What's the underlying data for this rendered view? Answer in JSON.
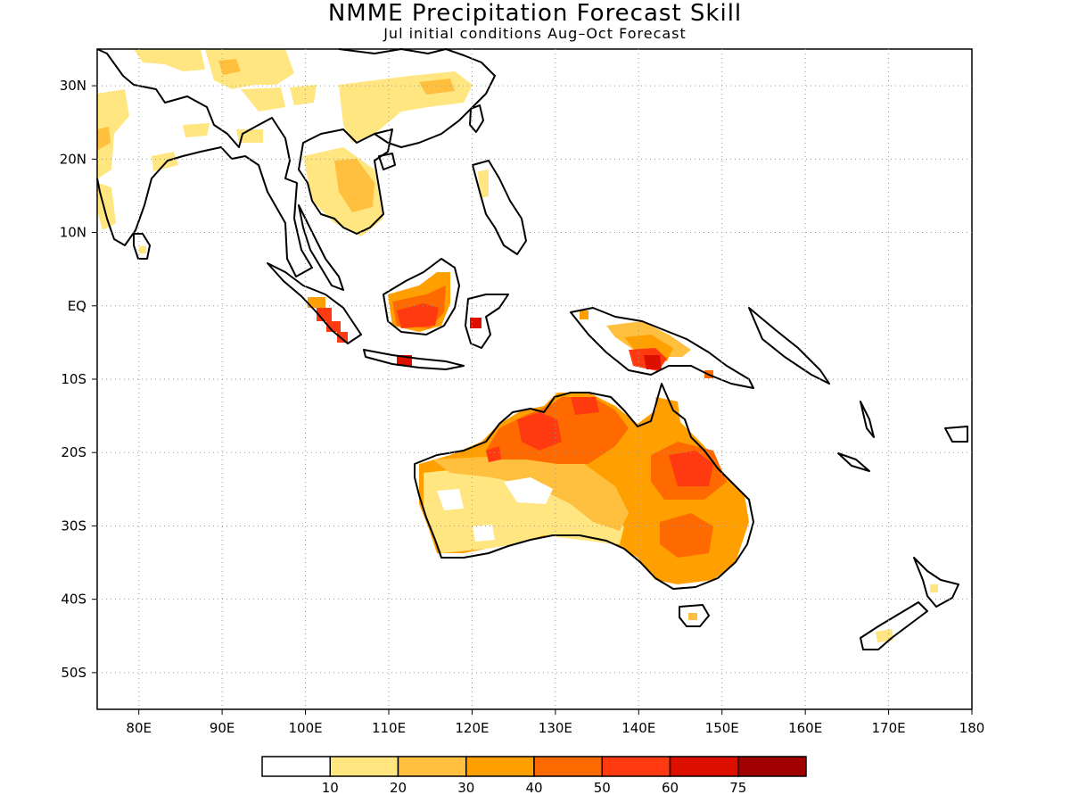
{
  "header": {
    "title": "NMME Precipitation Forecast Skill",
    "subtitle": "Jul initial conditions  Aug–Oct Forecast"
  },
  "map": {
    "lon_range": [
      75,
      180
    ],
    "lat_range": [
      -55,
      35
    ],
    "x_ticks": [
      {
        "value": 80,
        "label": "80E"
      },
      {
        "value": 90,
        "label": "90E"
      },
      {
        "value": 100,
        "label": "100E"
      },
      {
        "value": 110,
        "label": "110E"
      },
      {
        "value": 120,
        "label": "120E"
      },
      {
        "value": 130,
        "label": "130E"
      },
      {
        "value": 140,
        "label": "140E"
      },
      {
        "value": 150,
        "label": "150E"
      },
      {
        "value": 160,
        "label": "160E"
      },
      {
        "value": 170,
        "label": "170E"
      },
      {
        "value": 180,
        "label": "180"
      }
    ],
    "y_ticks": [
      {
        "value": 30,
        "label": "30N"
      },
      {
        "value": 20,
        "label": "20N"
      },
      {
        "value": 10,
        "label": "10N"
      },
      {
        "value": 0,
        "label": "EQ"
      },
      {
        "value": -10,
        "label": "10S"
      },
      {
        "value": -20,
        "label": "20S"
      },
      {
        "value": -30,
        "label": "30S"
      },
      {
        "value": -40,
        "label": "40S"
      },
      {
        "value": -50,
        "label": "50S"
      }
    ],
    "grid": "dotted"
  },
  "legend": {
    "colors": [
      "#ffffff",
      "#ffe680",
      "#ffc040",
      "#ffa000",
      "#ff6a00",
      "#ff3a10",
      "#dd1000",
      "#a00000"
    ],
    "labels": [
      "10",
      "20",
      "30",
      "40",
      "50",
      "60",
      "75"
    ]
  }
}
